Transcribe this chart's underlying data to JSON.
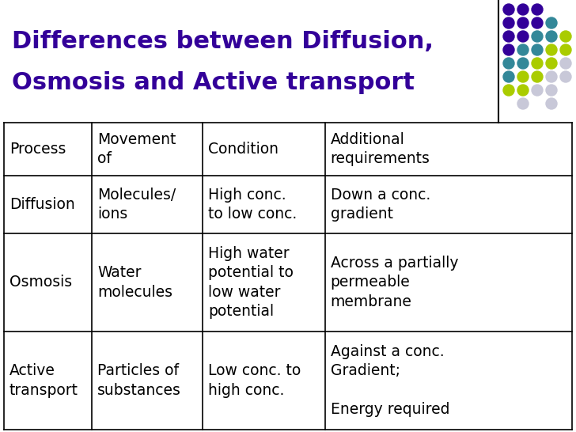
{
  "title_line1": "Differences between Diffusion,",
  "title_line2": "Osmosis and Active transport",
  "title_color": "#330099",
  "bg_color": "#FFFFFF",
  "headers": [
    "Process",
    "Movement\nof",
    "Condition",
    "Additional\nrequirements"
  ],
  "rows": [
    [
      "Diffusion",
      "Molecules/\nions",
      "High conc.\nto low conc.",
      "Down a conc.\ngradient"
    ],
    [
      "Osmosis",
      "Water\nmolecules",
      "High water\npotential to\nlow water\npotential",
      "Across a partially\npermeable\nmembrane"
    ],
    [
      "Active\ntransport",
      "Particles of\nsubstances",
      "Low conc. to\nhigh conc.",
      "Against a conc.\nGradient;\n\nEnergy required"
    ]
  ],
  "dot_grid": [
    [
      "#330099",
      "#330099",
      "#330099",
      "",
      ""
    ],
    [
      "#330099",
      "#330099",
      "#330099",
      "#338899",
      ""
    ],
    [
      "#330099",
      "#330099",
      "#338899",
      "#338899",
      "#AACC00"
    ],
    [
      "#330099",
      "#338899",
      "#338899",
      "#AACC00",
      "#AACC00"
    ],
    [
      "#338899",
      "#338899",
      "#AACC00",
      "#AACC00",
      "#C8C8D8"
    ],
    [
      "#338899",
      "#AACC00",
      "#AACC00",
      "#C8C8D8",
      "#C8C8D8"
    ],
    [
      "#AACC00",
      "#AACC00",
      "#C8C8D8",
      "#C8C8D8",
      ""
    ],
    [
      "",
      "#C8C8D8",
      "",
      "#C8C8D8",
      ""
    ]
  ],
  "font_size_title": 22,
  "font_size_cell": 13.5
}
